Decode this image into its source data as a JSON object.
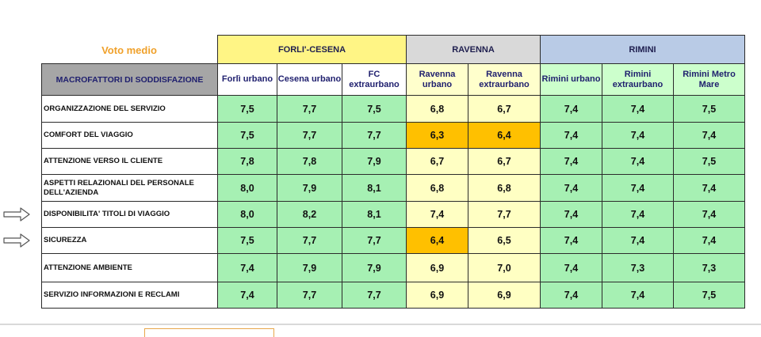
{
  "title": "Voto medio",
  "header": {
    "macro_label": "MACROFATTORI DI SODDISFAZIONE",
    "groups": [
      {
        "name": "FORLI'-CESENA",
        "span": 3,
        "cls": "g-fc"
      },
      {
        "name": "RAVENNA",
        "span": 2,
        "cls": "g-ra"
      },
      {
        "name": "RIMINI",
        "span": 3,
        "cls": "g-ri"
      }
    ],
    "columns": [
      {
        "label": "Forlì urbano",
        "group": "fc"
      },
      {
        "label": "Cesena urbano",
        "group": "fc"
      },
      {
        "label": "FC extraurbano",
        "group": "fc"
      },
      {
        "label": "Ravenna urbano",
        "group": "ra"
      },
      {
        "label": "Ravenna extraurbano",
        "group": "ra"
      },
      {
        "label": "Rimini urbano",
        "group": "ri"
      },
      {
        "label": "Rimini extraurbano",
        "group": "ri"
      },
      {
        "label": "Rimini Metro Mare",
        "group": "ri"
      }
    ]
  },
  "rows": [
    {
      "label": "ORGANIZZAZIONE DEL SERVIZIO",
      "arrow": false,
      "values": [
        "7,5",
        "7,7",
        "7,5",
        "6,8",
        "6,7",
        "7,4",
        "7,4",
        "7,5"
      ],
      "colors": [
        "green",
        "green",
        "green",
        "yellow",
        "yellow",
        "green",
        "green",
        "green"
      ]
    },
    {
      "label": "COMFORT DEL VIAGGIO",
      "arrow": false,
      "values": [
        "7,5",
        "7,7",
        "7,7",
        "6,3",
        "6,4",
        "7,4",
        "7,4",
        "7,4"
      ],
      "colors": [
        "green",
        "green",
        "green",
        "orange",
        "orange",
        "green",
        "green",
        "green"
      ]
    },
    {
      "label": "ATTENZIONE VERSO IL CLIENTE",
      "arrow": false,
      "values": [
        "7,8",
        "7,8",
        "7,9",
        "6,7",
        "6,7",
        "7,4",
        "7,4",
        "7,5"
      ],
      "colors": [
        "green",
        "green",
        "green",
        "yellow",
        "yellow",
        "green",
        "green",
        "green"
      ]
    },
    {
      "label": "ASPETTI RELAZIONALI DEL PERSONALE DELL'AZIENDA",
      "arrow": false,
      "values": [
        "8,0",
        "7,9",
        "8,1",
        "6,8",
        "6,8",
        "7,4",
        "7,4",
        "7,4"
      ],
      "colors": [
        "green",
        "green",
        "green",
        "yellow",
        "yellow",
        "green",
        "green",
        "green"
      ]
    },
    {
      "label": "DISPONIBILITA' TITOLI DI VIAGGIO",
      "arrow": true,
      "values": [
        "8,0",
        "8,2",
        "8,1",
        "7,4",
        "7,7",
        "7,4",
        "7,4",
        "7,4"
      ],
      "colors": [
        "green",
        "green",
        "green",
        "yellow",
        "yellow",
        "green",
        "green",
        "green"
      ]
    },
    {
      "label": "SICUREZZA",
      "arrow": true,
      "values": [
        "7,5",
        "7,7",
        "7,7",
        "6,4",
        "6,5",
        "7,4",
        "7,4",
        "7,4"
      ],
      "colors": [
        "green",
        "green",
        "green",
        "orange",
        "yellow",
        "green",
        "green",
        "green"
      ]
    },
    {
      "label": "ATTENZIONE AMBIENTE",
      "arrow": false,
      "values": [
        "7,4",
        "7,9",
        "7,9",
        "6,9",
        "7,0",
        "7,4",
        "7,3",
        "7,3"
      ],
      "colors": [
        "green",
        "green",
        "green",
        "yellow",
        "yellow",
        "green",
        "green",
        "green"
      ]
    },
    {
      "label": "SERVIZIO INFORMAZIONI E RECLAMI",
      "arrow": false,
      "values": [
        "7,4",
        "7,7",
        "7,7",
        "6,9",
        "6,9",
        "7,4",
        "7,4",
        "7,5"
      ],
      "colors": [
        "green",
        "green",
        "green",
        "yellow",
        "yellow",
        "green",
        "green",
        "green"
      ]
    }
  ],
  "colors": {
    "green": "#a6f0b3",
    "yellow": "#ffffc3",
    "orange": "#ffc000"
  }
}
